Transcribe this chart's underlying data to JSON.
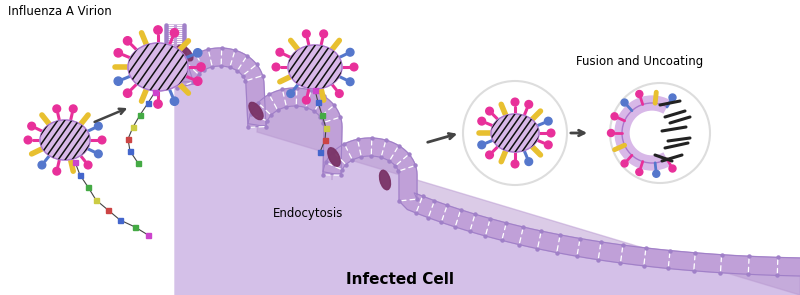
{
  "title": "Infected Cell",
  "label_virion": "Influenza A Virion",
  "label_endocytosis": "Endocytosis",
  "label_fusion": "Fusion and Uncoating",
  "bg_color": "#ffffff",
  "cell_fill_light": "#d4c0e8",
  "cell_fill_dark": "#b898d0",
  "membrane_purple": "#a080c8",
  "membrane_band": "#c0a0d8",
  "virion_body": "#d8b8e8",
  "virion_body_edge": "#aa77cc",
  "spike_pink": "#e8309a",
  "spike_blue": "#5577cc",
  "spike_yellow": "#e8c030",
  "stripe_color": "#111111",
  "protein_color": "#7a3366",
  "bead_purple": "#cc44cc",
  "bead_blue": "#4466cc",
  "bead_green": "#44aa44",
  "bead_yellow": "#cccc44",
  "bead_red": "#cc4444",
  "arrow_color": "#555555",
  "endosome_white": "#ffffff",
  "endosome_edge": "#cccccc",
  "rna_color": "#222222"
}
